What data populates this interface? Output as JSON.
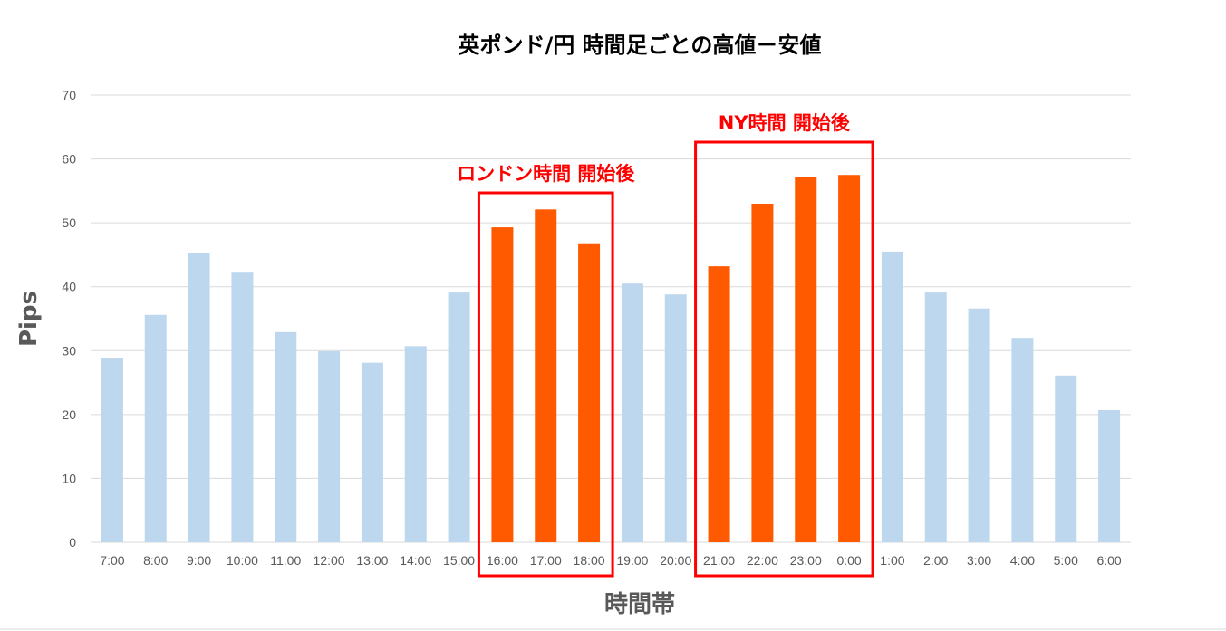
{
  "chart_data": {
    "type": "bar",
    "title": "英ポンド/円 時間足ごとの高値－安値",
    "xlabel": "時間帯",
    "ylabel": "Pips",
    "ylim": [
      0,
      70
    ],
    "yticks": [
      0,
      10,
      20,
      30,
      40,
      50,
      60,
      70
    ],
    "grid": true,
    "categories": [
      "7:00",
      "8:00",
      "9:00",
      "10:00",
      "11:00",
      "12:00",
      "13:00",
      "14:00",
      "15:00",
      "16:00",
      "17:00",
      "18:00",
      "19:00",
      "20:00",
      "21:00",
      "22:00",
      "23:00",
      "0:00",
      "1:00",
      "2:00",
      "3:00",
      "4:00",
      "5:00",
      "6:00"
    ],
    "values": [
      28.9,
      35.6,
      45.3,
      42.2,
      32.9,
      29.9,
      28.1,
      30.7,
      39.1,
      49.3,
      52.1,
      46.8,
      40.5,
      38.8,
      43.2,
      53.0,
      57.2,
      57.5,
      45.5,
      39.1,
      36.6,
      32.0,
      26.1,
      20.7
    ],
    "colors": {
      "default": "#bdd7ee",
      "highlight": "#ff5a00",
      "annotation": "#ff0000"
    },
    "highlighted": [
      "16:00",
      "17:00",
      "18:00",
      "21:00",
      "22:00",
      "23:00",
      "0:00"
    ],
    "annotations": [
      {
        "text": "ロンドン時間 開始後",
        "categories": [
          "16:00",
          "18:00"
        ]
      },
      {
        "text": "NY時間 開始後",
        "categories": [
          "21:00",
          "0:00"
        ]
      }
    ]
  }
}
